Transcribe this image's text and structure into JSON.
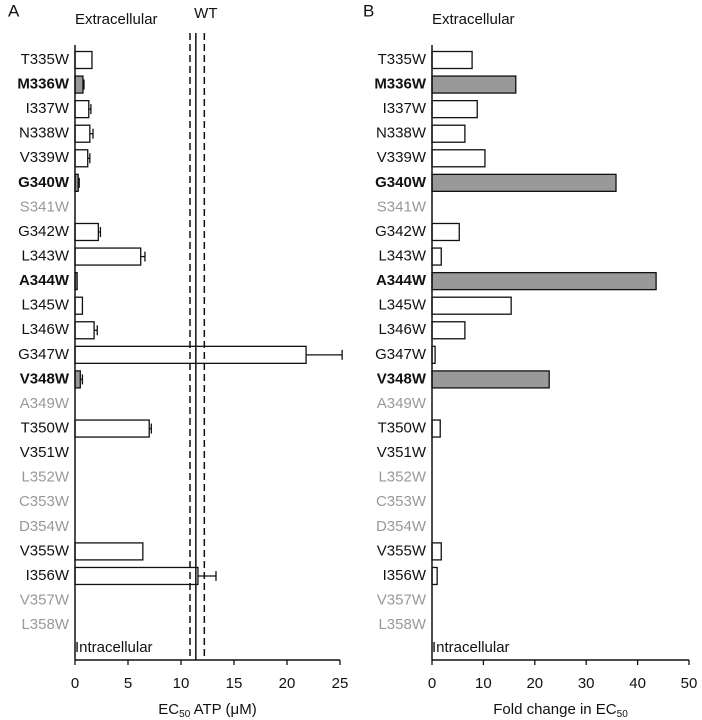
{
  "chart_data": [
    {
      "type": "bar",
      "orientation": "horizontal",
      "panel_label": "A",
      "top_label": "Extracellular",
      "bottom_label": "Intracellular",
      "xlabel": "EC",
      "xlabel_sub": "50",
      "xlabel_rest": " ATP (μM)",
      "categories": [
        "T335W",
        "M336W",
        "I337W",
        "N338W",
        "V339W",
        "G340W",
        "S341W",
        "G342W",
        "L343W",
        "A344W",
        "L345W",
        "L346W",
        "G347W",
        "V348W",
        "A349W",
        "T350W",
        "V351W",
        "L352W",
        "C353W",
        "D354W",
        "V355W",
        "I356W",
        "V357W",
        "L358W"
      ],
      "label_style": [
        "normal",
        "bold",
        "normal",
        "normal",
        "normal",
        "bold",
        "muted",
        "normal",
        "normal",
        "bold",
        "normal",
        "normal",
        "normal",
        "bold",
        "muted",
        "normal",
        "normal",
        "muted",
        "muted",
        "muted",
        "normal",
        "normal",
        "muted",
        "muted"
      ],
      "values": [
        1.6,
        0.75,
        1.3,
        1.4,
        1.2,
        0.3,
        null,
        2.2,
        6.2,
        0.2,
        0.7,
        1.8,
        21.8,
        0.5,
        null,
        7.0,
        null,
        null,
        null,
        null,
        6.4,
        11.6,
        null,
        null
      ],
      "errors": [
        null,
        0.1,
        0.2,
        0.3,
        0.2,
        0.1,
        null,
        0.2,
        0.4,
        null,
        null,
        0.3,
        3.4,
        0.2,
        null,
        0.2,
        null,
        null,
        null,
        null,
        null,
        1.7,
        null,
        null
      ],
      "wt": {
        "label": "WT",
        "value": 11.4,
        "lower": 10.85,
        "upper": 12.2
      },
      "color": "#ffffff",
      "highlight_color": "#999999",
      "muted_color": "#999999",
      "xlim": [
        0,
        25
      ],
      "xticks": [
        0,
        5,
        10,
        15,
        20,
        25
      ]
    },
    {
      "type": "bar",
      "orientation": "horizontal",
      "panel_label": "B",
      "top_label": "Extracellular",
      "bottom_label": "Intracellular",
      "xlabel": "Fold change in EC",
      "xlabel_sub": "50",
      "categories": [
        "T335W",
        "M336W",
        "I337W",
        "N338W",
        "V339W",
        "G340W",
        "S341W",
        "G342W",
        "L343W",
        "A344W",
        "L345W",
        "L346W",
        "G347W",
        "V348W",
        "A349W",
        "T350W",
        "V351W",
        "L352W",
        "C353W",
        "D354W",
        "V355W",
        "I356W",
        "V357W",
        "L358W"
      ],
      "label_style": [
        "normal",
        "bold",
        "normal",
        "normal",
        "normal",
        "bold",
        "muted",
        "normal",
        "normal",
        "bold",
        "normal",
        "normal",
        "normal",
        "bold",
        "muted",
        "normal",
        "normal",
        "muted",
        "muted",
        "muted",
        "normal",
        "normal",
        "muted",
        "muted"
      ],
      "values": [
        7.8,
        16.3,
        8.8,
        6.4,
        10.3,
        35.8,
        null,
        5.3,
        1.8,
        43.6,
        15.4,
        6.4,
        0.6,
        22.8,
        null,
        1.6,
        null,
        null,
        null,
        null,
        1.8,
        1.0,
        null,
        null
      ],
      "color": "#ffffff",
      "highlight_color": "#999999",
      "muted_color": "#999999",
      "xlim": [
        0,
        50
      ],
      "xticks": [
        0,
        10,
        20,
        30,
        40,
        50
      ]
    }
  ]
}
